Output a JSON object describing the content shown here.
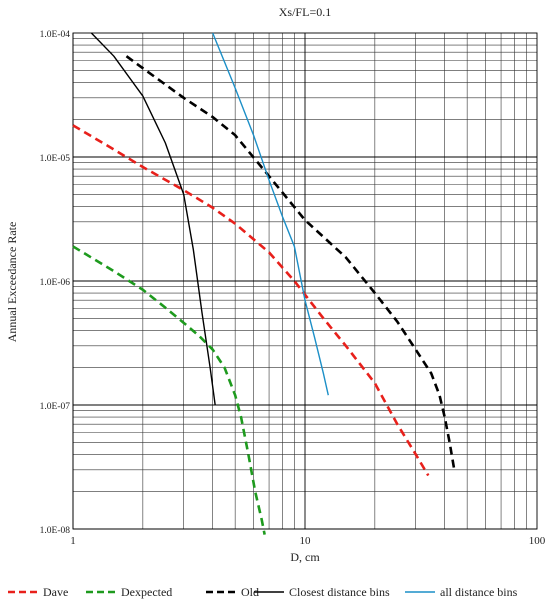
{
  "chart_data": {
    "type": "line",
    "title": "Xs/FL=0.1",
    "xlabel": "D, cm",
    "ylabel": "Annual Exceedance Rate",
    "x_scale": "log",
    "y_scale": "log",
    "xlim": [
      1,
      100
    ],
    "ylim": [
      1e-08,
      0.0001
    ],
    "x_ticks": [
      {
        "value": 1,
        "label": "1"
      },
      {
        "value": 10,
        "label": "10"
      },
      {
        "value": 100,
        "label": "100"
      }
    ],
    "y_ticks": [
      {
        "value": 1e-08,
        "label": "1.0E-08"
      },
      {
        "value": 1e-07,
        "label": "1.0E-07"
      },
      {
        "value": 1e-06,
        "label": "1.0E-06"
      },
      {
        "value": 1e-05,
        "label": "1.0E-05"
      },
      {
        "value": 0.0001,
        "label": "1.0E-04"
      }
    ],
    "grid": true,
    "legend_position": "bottom",
    "series": [
      {
        "name": "Dave",
        "color": "#e8201b",
        "dash": "dashed",
        "points": [
          [
            1,
            1.8e-05
          ],
          [
            1.5,
            1.15e-05
          ],
          [
            2,
            8.3e-06
          ],
          [
            3,
            5.4e-06
          ],
          [
            4,
            3.9e-06
          ],
          [
            5,
            2.9e-06
          ],
          [
            7,
            1.7e-06
          ],
          [
            9,
            1e-06
          ],
          [
            12,
            5e-07
          ],
          [
            15,
            3e-07
          ],
          [
            20,
            1.5e-07
          ],
          [
            25,
            7e-08
          ],
          [
            30,
            4e-08
          ],
          [
            34,
            2.7e-08
          ]
        ]
      },
      {
        "name": "Dexpected",
        "color": "#1e9a1e",
        "dash": "dashed",
        "points": [
          [
            1,
            1.9e-06
          ],
          [
            1.5,
            1.2e-06
          ],
          [
            2,
            8.5e-07
          ],
          [
            2.5,
            6.1e-07
          ],
          [
            3,
            4.6e-07
          ],
          [
            3.5,
            3.6e-07
          ],
          [
            4,
            2.8e-07
          ],
          [
            4.5,
            2e-07
          ],
          [
            5,
            1.2e-07
          ],
          [
            5.3,
            8e-08
          ],
          [
            5.7,
            4e-08
          ],
          [
            6.1,
            2e-08
          ],
          [
            6.5,
            1.2e-08
          ],
          [
            6.7,
            9e-09
          ]
        ]
      },
      {
        "name": "Old",
        "color": "#000000",
        "dash": "dashed",
        "points": [
          [
            1.7,
            6.5e-05
          ],
          [
            2,
            5.2e-05
          ],
          [
            3,
            3e-05
          ],
          [
            4,
            2.1e-05
          ],
          [
            5,
            1.5e-05
          ],
          [
            7,
            7e-06
          ],
          [
            10,
            3.1e-06
          ],
          [
            15,
            1.55e-06
          ],
          [
            20,
            8e-07
          ],
          [
            25,
            4.7e-07
          ],
          [
            30,
            2.8e-07
          ],
          [
            35,
            1.8e-07
          ],
          [
            38,
            1.2e-07
          ],
          [
            40,
            8e-08
          ],
          [
            42,
            5e-08
          ],
          [
            44,
            3e-08
          ]
        ]
      },
      {
        "name": "Closest distance bins",
        "color": "#000000",
        "dash": "solid",
        "points": [
          [
            1.2,
            0.0001
          ],
          [
            1.5,
            6.5e-05
          ],
          [
            2,
            3.1e-05
          ],
          [
            2.5,
            1.3e-05
          ],
          [
            3,
            5e-06
          ],
          [
            3.3,
            1.8e-06
          ],
          [
            3.6,
            5.5e-07
          ],
          [
            3.9,
            2e-07
          ],
          [
            4.1,
            1e-07
          ]
        ]
      },
      {
        "name": "all distance bins",
        "color": "#1c8fc7",
        "dash": "solid",
        "points": [
          [
            4,
            0.0001
          ],
          [
            5,
            3.6e-05
          ],
          [
            6,
            1.5e-05
          ],
          [
            7,
            6.5e-06
          ],
          [
            8,
            3.3e-06
          ],
          [
            9,
            1.9e-06
          ],
          [
            10,
            7e-07
          ],
          [
            11,
            3.5e-07
          ],
          [
            12,
            1.8e-07
          ],
          [
            12.6,
            1.2e-07
          ]
        ]
      }
    ]
  }
}
